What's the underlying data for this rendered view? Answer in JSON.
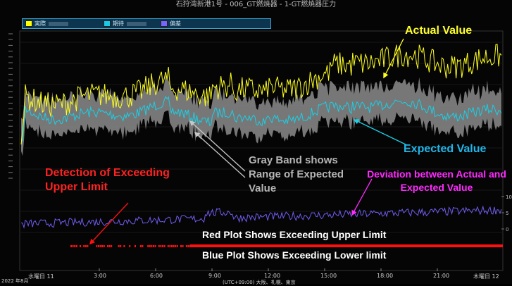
{
  "window": {
    "title": "石狩湾新港1号 - 006_GT燃焼器 - 1-GT燃焼器圧力"
  },
  "legend": {
    "items": [
      {
        "label": "実際",
        "color": "#ffff00"
      },
      {
        "label": "期待",
        "color": "#19c9e8"
      },
      {
        "label": "偏差",
        "color": "#7a64ff"
      }
    ]
  },
  "annotations": {
    "actual": "Actual Value",
    "expected": "Expected Value",
    "gray_band": [
      "Gray Band shows",
      "Range of Expected",
      "Value"
    ],
    "detection": [
      "Detection of Exceeding",
      "Upper Limit"
    ],
    "deviation": "Deviation between Actual and Expected Value",
    "red_plot": "Red Plot Shows Exceeding Upper Limit",
    "blue_plot": "Blue Plot Shows Exceeding Lower limit"
  },
  "x_axis": {
    "labels": [
      "水曜日 11",
      "3:00",
      "6:00",
      "9:00",
      "12:00",
      "15:00",
      "18:00",
      "21:00",
      "木曜日 12"
    ],
    "timezone_note": "(UTC+09:00) 大阪、札幌、東京",
    "year_label": "2022 年8月"
  },
  "right_axis": {
    "labels": [
      "10",
      "5",
      "0"
    ]
  },
  "colors": {
    "actual": "#ffff1e",
    "expected": "#19d0e6",
    "band": "#8c8c8c",
    "deviation": "#6f5cf0",
    "exceed_upper": "#ff1010",
    "arrow_gray": "#c8c8c8"
  }
}
